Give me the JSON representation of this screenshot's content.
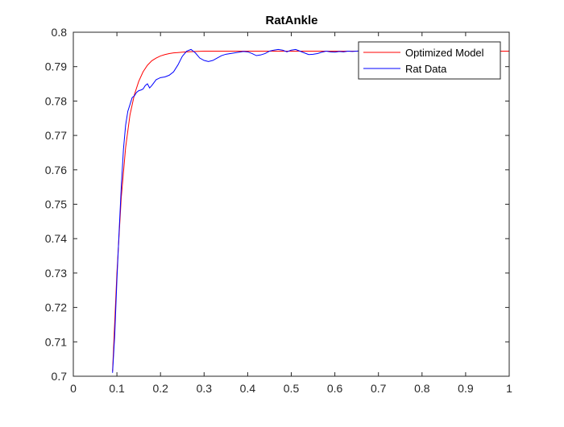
{
  "chart_data": {
    "type": "line",
    "title": "RatAnkle",
    "xlabel": "",
    "ylabel": "",
    "xlim": [
      0,
      1
    ],
    "ylim": [
      0.7,
      0.8
    ],
    "xticks": [
      0,
      0.1,
      0.2,
      0.3,
      0.4,
      0.5,
      0.6,
      0.7,
      0.8,
      0.9,
      1
    ],
    "xtick_labels": [
      "0",
      "0.1",
      "0.2",
      "0.3",
      "0.4",
      "0.5",
      "0.6",
      "0.7",
      "0.8",
      "0.9",
      "1"
    ],
    "yticks": [
      0.7,
      0.71,
      0.72,
      0.73,
      0.74,
      0.75,
      0.76,
      0.77,
      0.78,
      0.79,
      0.8
    ],
    "ytick_labels": [
      "0.7",
      "0.71",
      "0.72",
      "0.73",
      "0.74",
      "0.75",
      "0.76",
      "0.77",
      "0.78",
      "0.79",
      "0.8"
    ],
    "grid": false,
    "legend_position": "top-right",
    "series": [
      {
        "name": "Optimized Model",
        "color": "#ff0000",
        "x": [
          0.09,
          0.1,
          0.11,
          0.12,
          0.13,
          0.14,
          0.15,
          0.16,
          0.17,
          0.18,
          0.19,
          0.2,
          0.21,
          0.22,
          0.23,
          0.24,
          0.25,
          0.26,
          0.28,
          0.3,
          0.35,
          0.4,
          0.5,
          0.6,
          0.7,
          0.8,
          0.9,
          1.0
        ],
        "y": [
          0.7015,
          0.73,
          0.752,
          0.7665,
          0.776,
          0.7818,
          0.7857,
          0.7885,
          0.7904,
          0.7917,
          0.7925,
          0.7931,
          0.7935,
          0.7938,
          0.794,
          0.7941,
          0.7942,
          0.7943,
          0.7944,
          0.7945,
          0.7945,
          0.7945,
          0.7945,
          0.7945,
          0.7945,
          0.7945,
          0.7945,
          0.7945
        ]
      },
      {
        "name": "Rat Data",
        "color": "#0000ff",
        "x": [
          0.09,
          0.095,
          0.1,
          0.105,
          0.11,
          0.115,
          0.12,
          0.125,
          0.13,
          0.135,
          0.14,
          0.145,
          0.15,
          0.155,
          0.16,
          0.165,
          0.17,
          0.175,
          0.18,
          0.19,
          0.2,
          0.21,
          0.22,
          0.23,
          0.24,
          0.25,
          0.26,
          0.27,
          0.28,
          0.29,
          0.3,
          0.31,
          0.32,
          0.33,
          0.34,
          0.35,
          0.36,
          0.37,
          0.38,
          0.39,
          0.4,
          0.41,
          0.42,
          0.43,
          0.44,
          0.45,
          0.46,
          0.47,
          0.48,
          0.49,
          0.5,
          0.51,
          0.52,
          0.53,
          0.54,
          0.55,
          0.56,
          0.57,
          0.58,
          0.59,
          0.6,
          0.61,
          0.62,
          0.63,
          0.64,
          0.65,
          0.66,
          0.67,
          0.68,
          0.69,
          0.7
        ],
        "y": [
          0.701,
          0.712,
          0.728,
          0.742,
          0.755,
          0.766,
          0.773,
          0.777,
          0.779,
          0.781,
          0.7815,
          0.7825,
          0.783,
          0.7832,
          0.7835,
          0.7845,
          0.785,
          0.7838,
          0.7845,
          0.7862,
          0.7868,
          0.787,
          0.7875,
          0.7885,
          0.7905,
          0.793,
          0.7945,
          0.795,
          0.794,
          0.7925,
          0.7918,
          0.7915,
          0.7918,
          0.7925,
          0.7932,
          0.7936,
          0.7938,
          0.794,
          0.7942,
          0.7944,
          0.7943,
          0.7938,
          0.7932,
          0.7934,
          0.7938,
          0.7945,
          0.7948,
          0.795,
          0.7948,
          0.7943,
          0.7948,
          0.795,
          0.7945,
          0.794,
          0.7935,
          0.7936,
          0.7938,
          0.7942,
          0.7945,
          0.7943,
          0.7942,
          0.7944,
          0.7943,
          0.7945,
          0.7944,
          0.7945,
          0.7946,
          0.7945,
          0.7944,
          0.7945,
          0.7945
        ]
      }
    ]
  }
}
